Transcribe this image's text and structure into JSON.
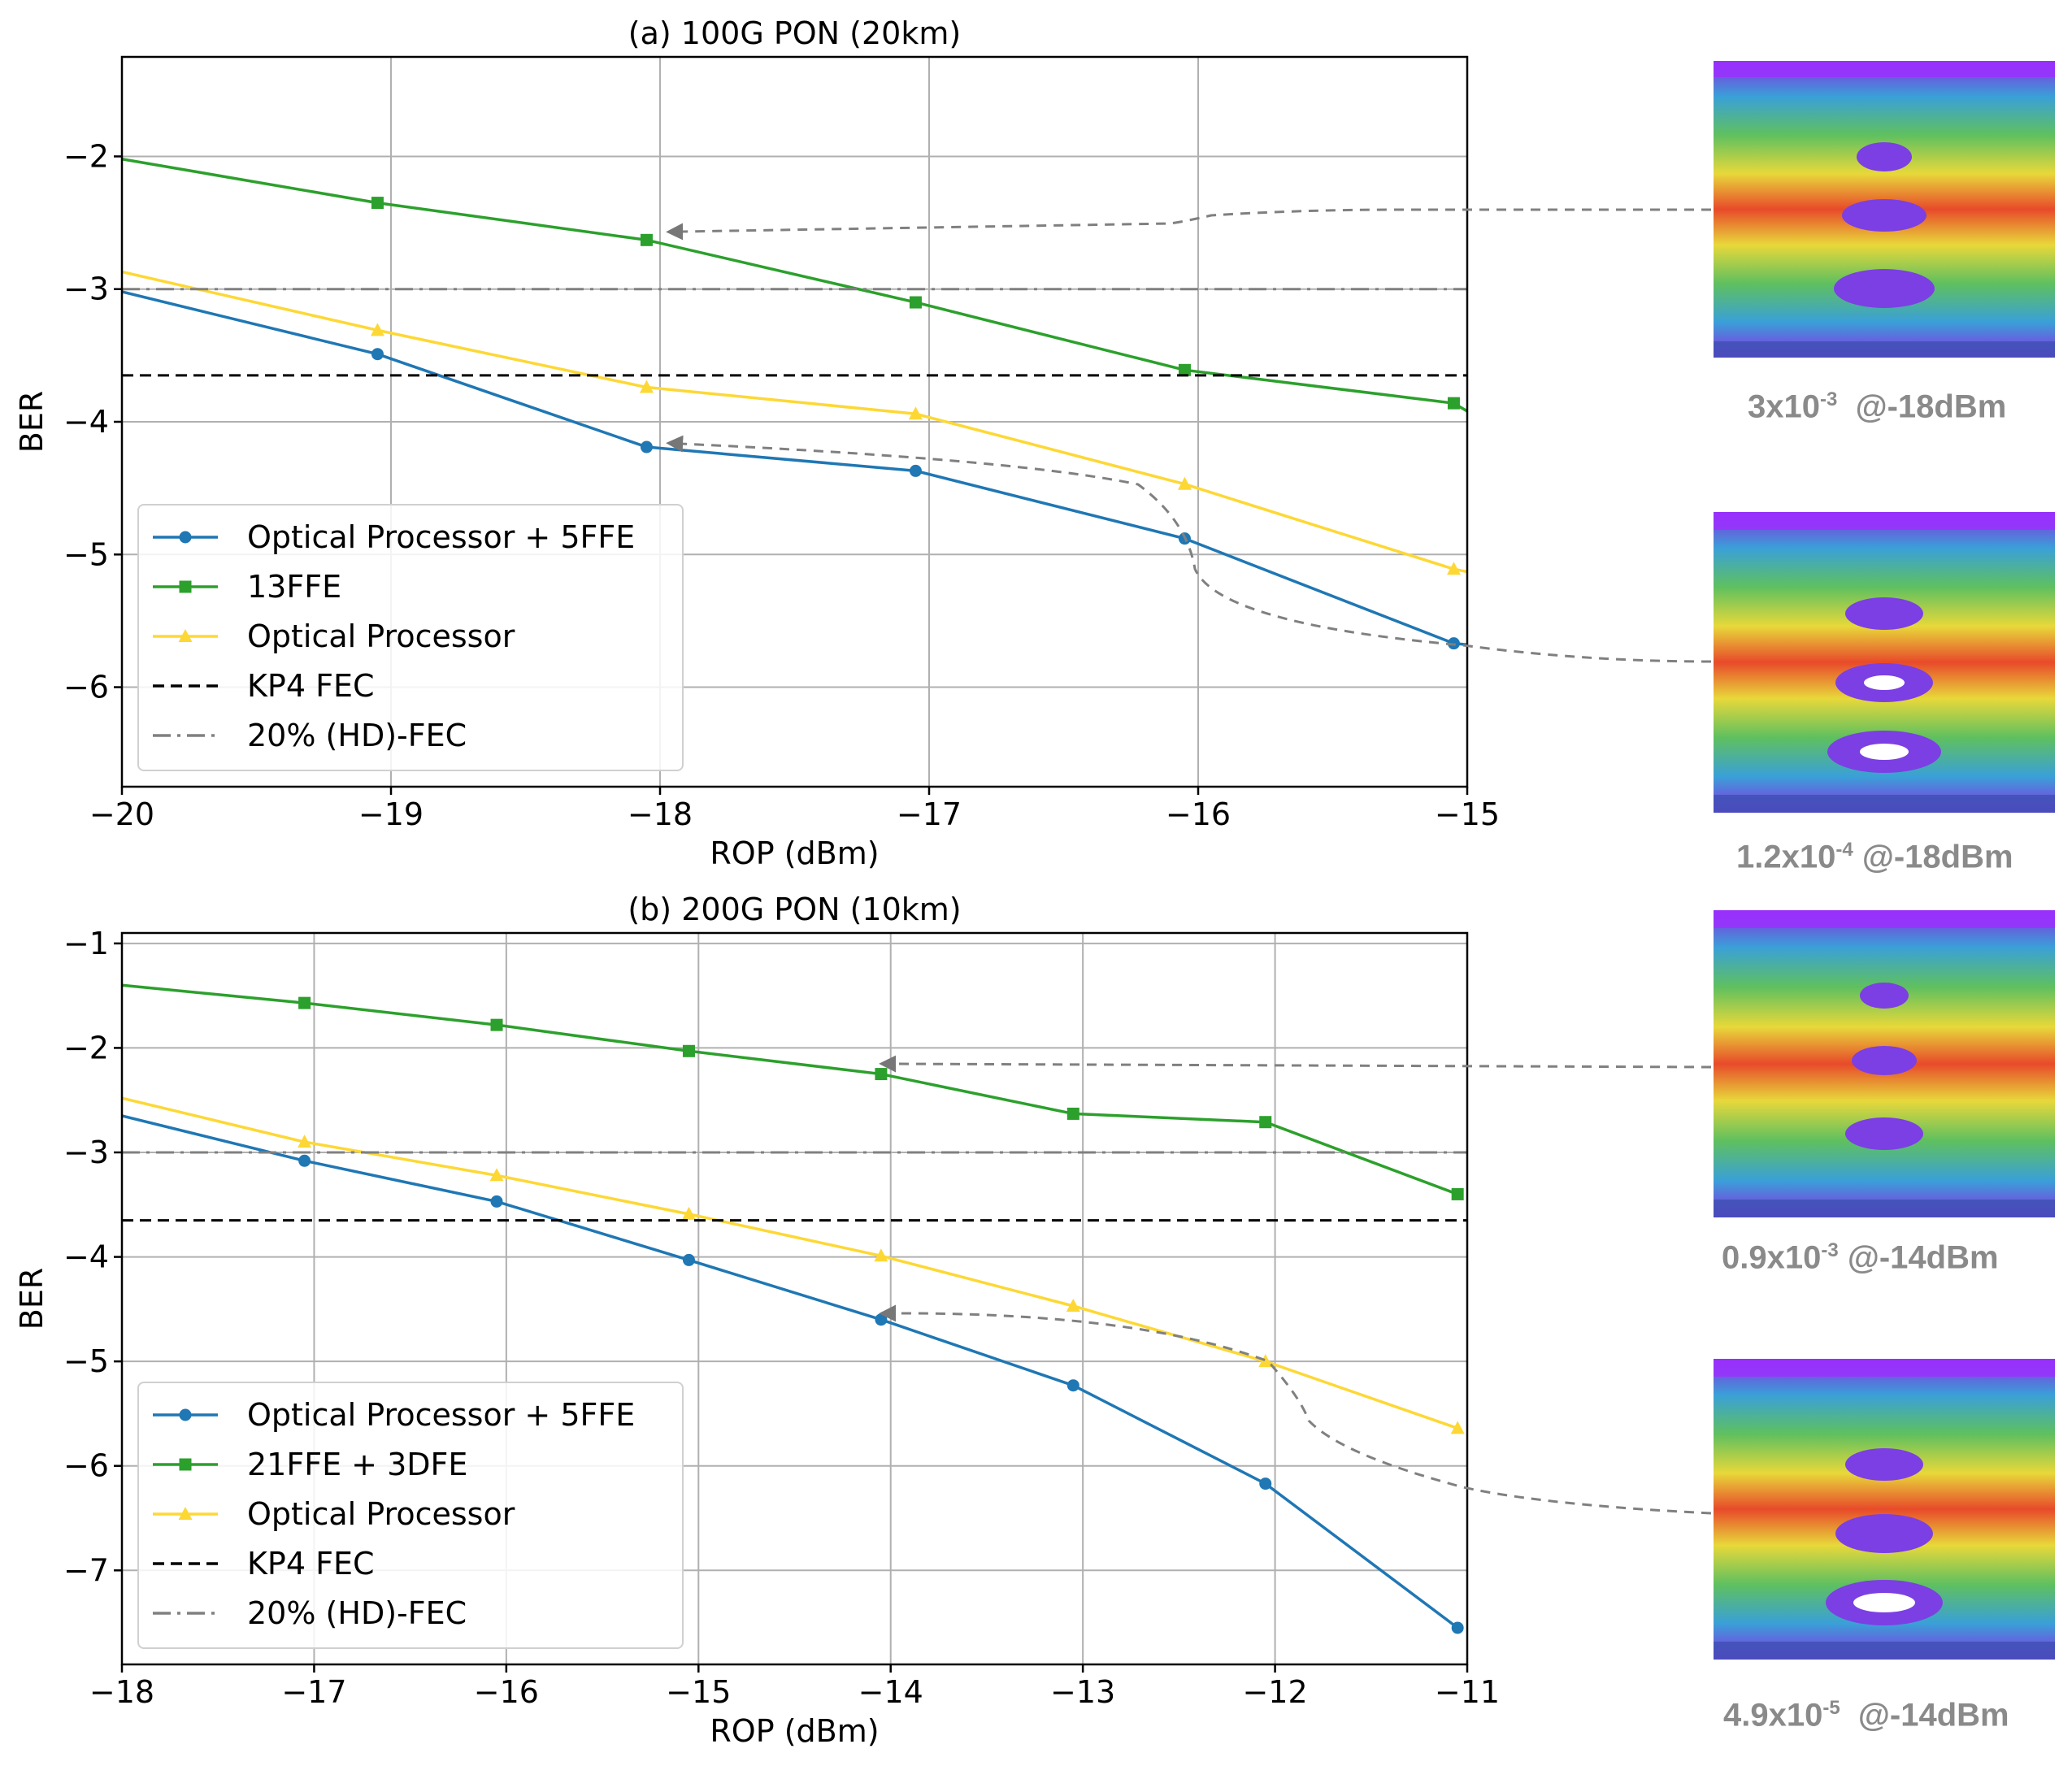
{
  "chart_data": [
    {
      "type": "line",
      "title": "(a) 100G PON (20km)",
      "xlabel": "ROP (dBm)",
      "ylabel": "BER",
      "xlim": [
        -20,
        -15
      ],
      "ylim": [
        -6.75,
        -1.25
      ],
      "xticks": [
        -20,
        -19,
        -18,
        -17,
        -16,
        -15
      ],
      "xtick_labels": [
        "−20",
        "−19",
        "−18",
        "−17",
        "−16",
        "−15"
      ],
      "yticks": [
        -6,
        -5,
        -4,
        -3,
        -2
      ],
      "ytick_labels": [
        "−6",
        "−5",
        "−4",
        "−3",
        "−2"
      ],
      "grid": true,
      "legend_position": "lower-left",
      "series": [
        {
          "name": "Optical Processor + 5FFE",
          "color": "#1f77b4",
          "marker": "circle",
          "x": [
            -20.0,
            -19.05,
            -18.05,
            -17.05,
            -16.05,
            -15.05,
            -15.0
          ],
          "y": [
            -3.02,
            -3.49,
            -4.19,
            -4.37,
            -4.88,
            -5.67,
            -5.68
          ],
          "markers": [
            1,
            2,
            3,
            4,
            5
          ]
        },
        {
          "name": "13FFE",
          "color": "#2ca02c",
          "marker": "square",
          "x": [
            -20.0,
            -19.05,
            -18.05,
            -17.05,
            -16.05,
            -15.05,
            -15.0
          ],
          "y": [
            -2.02,
            -2.35,
            -2.63,
            -3.1,
            -3.61,
            -3.86,
            -3.92
          ],
          "markers": [
            1,
            2,
            3,
            4,
            5
          ]
        },
        {
          "name": "Optical Processor",
          "color": "#fdd835",
          "marker": "triangle",
          "x": [
            -20.0,
            -19.05,
            -18.05,
            -17.05,
            -16.05,
            -15.05,
            -15.0
          ],
          "y": [
            -2.87,
            -3.31,
            -3.74,
            -3.94,
            -4.47,
            -5.11,
            -5.13
          ],
          "markers": [
            1,
            2,
            3,
            4,
            5
          ]
        },
        {
          "name": "KP4 FEC",
          "color": "#000000",
          "style": "dashed",
          "x": [
            -20,
            -15
          ],
          "y": [
            -3.65,
            -3.65
          ],
          "markers": []
        },
        {
          "name": "20% (HD)-FEC",
          "color": "#808080",
          "style": "dashdot",
          "x": [
            -20,
            -15
          ],
          "y": [
            -3.0,
            -3.0
          ],
          "markers": []
        }
      ],
      "eye_diagrams": [
        {
          "ber_mantissa": "3x10",
          "ber_exp": "-3",
          "power": "@-18dBm"
        },
        {
          "ber_mantissa": "1.2x10",
          "ber_exp": "-4",
          "power": "@-18dBm"
        }
      ]
    },
    {
      "type": "line",
      "title": "(b) 200G PON (10km)",
      "xlabel": "ROP (dBm)",
      "ylabel": "BER",
      "xlim": [
        -18,
        -11
      ],
      "ylim": [
        -7.9,
        -0.9
      ],
      "xticks": [
        -18,
        -17,
        -16,
        -15,
        -14,
        -13,
        -12,
        -11
      ],
      "xtick_labels": [
        "−18",
        "−17",
        "−16",
        "−15",
        "−14",
        "−13",
        "−12",
        "−11"
      ],
      "yticks": [
        -7,
        -6,
        -5,
        -4,
        -3,
        -2,
        -1
      ],
      "ytick_labels": [
        "−7",
        "−6",
        "−5",
        "−4",
        "−3",
        "−2",
        "−1"
      ],
      "grid": true,
      "legend_position": "lower-left",
      "series": [
        {
          "name": "Optical Processor + 5FFE",
          "color": "#1f77b4",
          "marker": "circle",
          "x": [
            -18.0,
            -17.05,
            -16.05,
            -15.05,
            -14.05,
            -13.05,
            -12.05,
            -11.05
          ],
          "y": [
            -2.65,
            -3.08,
            -3.47,
            -4.03,
            -4.6,
            -5.23,
            -6.17,
            -7.55
          ],
          "markers": [
            1,
            2,
            3,
            4,
            5,
            6,
            7
          ]
        },
        {
          "name": "21FFE + 3DFE",
          "color": "#2ca02c",
          "marker": "square",
          "x": [
            -18.0,
            -17.05,
            -16.05,
            -15.05,
            -14.05,
            -13.05,
            -12.05,
            -11.05
          ],
          "y": [
            -1.4,
            -1.57,
            -1.78,
            -2.03,
            -2.25,
            -2.63,
            -2.71,
            -3.4
          ],
          "markers": [
            1,
            2,
            3,
            4,
            5,
            6,
            7
          ]
        },
        {
          "name": "Optical Processor",
          "color": "#fdd835",
          "marker": "triangle",
          "x": [
            -18.0,
            -17.05,
            -16.05,
            -15.05,
            -14.05,
            -13.05,
            -12.05,
            -11.05
          ],
          "y": [
            -2.48,
            -2.9,
            -3.22,
            -3.59,
            -3.99,
            -4.47,
            -5.0,
            -5.64
          ],
          "markers": [
            1,
            2,
            3,
            4,
            5,
            6,
            7
          ]
        },
        {
          "name": "KP4 FEC",
          "color": "#000000",
          "style": "dashed",
          "x": [
            -18,
            -11
          ],
          "y": [
            -3.65,
            -3.65
          ],
          "markers": []
        },
        {
          "name": "20% (HD)-FEC",
          "color": "#808080",
          "style": "dashdot",
          "x": [
            -18,
            -11
          ],
          "y": [
            -3.0,
            -3.0
          ],
          "markers": []
        }
      ],
      "eye_diagrams": [
        {
          "ber_mantissa": "0.9x10",
          "ber_exp": "-3",
          "power": "@-14dBm"
        },
        {
          "ber_mantissa": "4.9x10",
          "ber_exp": "-5",
          "power": "@-14dBm"
        }
      ]
    }
  ]
}
